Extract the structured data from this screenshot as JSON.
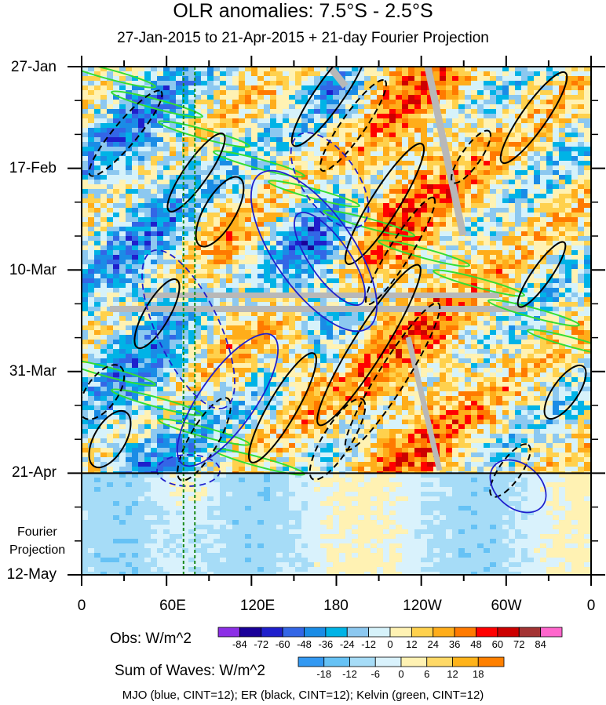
{
  "chart_data": {
    "type": "heatmap",
    "title": "OLR anomalies: 7.5°S - 2.5°S",
    "subtitle": "27-Jan-2015 to 21-Apr-2015 + 21-day Fourier Projection",
    "x_ticks": [
      "0",
      "60E",
      "120E",
      "180",
      "120W",
      "60W",
      "0"
    ],
    "x_range": [
      0,
      360
    ],
    "y_ticks": [
      "27-Jan",
      "17-Feb",
      "10-Mar",
      "31-Mar",
      "21-Apr",
      "12-May"
    ],
    "y_range_days": [
      0,
      105
    ],
    "projection_start_day": 84,
    "projection_label_1": "Fourier",
    "projection_label_2": "Projection",
    "obs_colorbar": {
      "label": "Obs: W/m^2",
      "levels": [
        "-84",
        "-72",
        "-60",
        "-48",
        "-36",
        "-24",
        "-12",
        "0",
        "12",
        "24",
        "36",
        "48",
        "60",
        "72",
        "84"
      ],
      "colors": [
        "#8c2fe6",
        "#1a0099",
        "#1f1fcc",
        "#3366e6",
        "#1a8ce6",
        "#00b3e6",
        "#8cc8f0",
        "#d6f2fa",
        "#fff2b3",
        "#ffd14d",
        "#ffad1a",
        "#ff7a00",
        "#ff0000",
        "#cc0000",
        "#a33333",
        "#ff66cc"
      ]
    },
    "sum_colorbar": {
      "label": "Sum of Waves: W/m^2",
      "levels": [
        "-18",
        "-12",
        "-6",
        "0",
        "6",
        "12",
        "18"
      ],
      "colors": [
        "#3399f2",
        "#66c2f5",
        "#a6dcf7",
        "#d9f2fc",
        "#fff2b3",
        "#ffd966",
        "#ffb31a",
        "#ff8000"
      ]
    },
    "footer": "MJO (blue, CINT=12); ER (black, CINT=12); Kelvin (green, CINT=12)",
    "reference_longitudes": [
      72,
      80
    ],
    "series": [
      {
        "name": "MJO",
        "color": "#1f1fcc",
        "cint": 12
      },
      {
        "name": "ER",
        "color": "#000000",
        "cint": 12
      },
      {
        "name": "Kelvin",
        "color": "#33dd33",
        "cint": 12
      }
    ]
  }
}
